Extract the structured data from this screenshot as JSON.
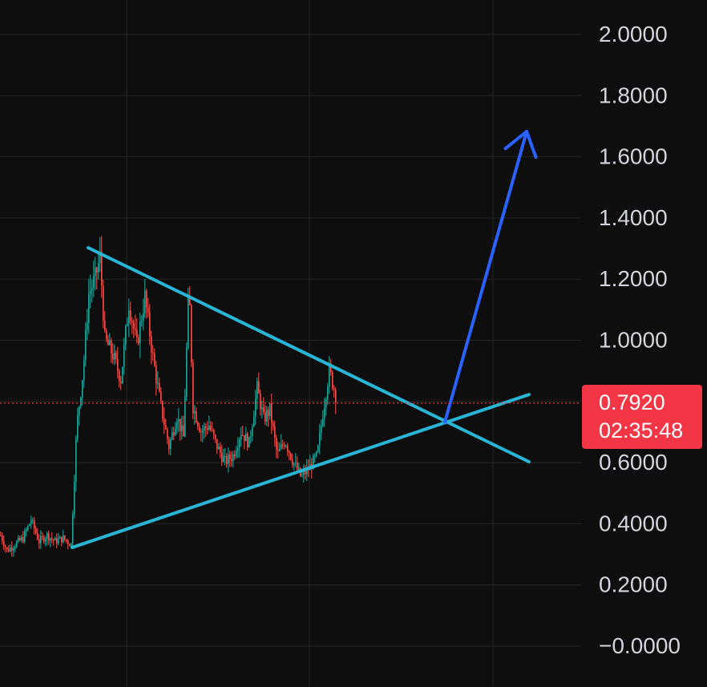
{
  "chart_data": {
    "type": "candlestick",
    "y_axis": {
      "range": [
        0,
        2.0
      ],
      "ticks": [
        2.0,
        1.8,
        1.6,
        1.4,
        1.2,
        1.0,
        0.6,
        0.4,
        0.2,
        0.0
      ],
      "tick_labels": [
        "2.0000",
        "1.8000",
        "1.6000",
        "1.4000",
        "1.2000",
        "1.0000",
        "0.6000",
        "0.4000",
        "0.2000",
        "−0.0000"
      ],
      "position": "right"
    },
    "grid": true,
    "current_price": {
      "value": 0.792,
      "label": "0.7920",
      "countdown": "02:35:48",
      "badge_color": "#f23645",
      "line_color": "#f23645"
    },
    "colors": {
      "background": "#0e0e0e",
      "grid": "#262626",
      "up_candle": "#26a69a",
      "down_candle": "#ef5350",
      "trendlines": "#29b6d6",
      "arrow": "#2962ff",
      "axis_text": "#d1d4dc"
    },
    "price_path": [
      [
        0,
        0.36
      ],
      [
        8,
        0.31
      ],
      [
        18,
        0.33
      ],
      [
        28,
        0.35
      ],
      [
        38,
        0.41
      ],
      [
        48,
        0.34
      ],
      [
        58,
        0.36
      ],
      [
        68,
        0.34
      ],
      [
        78,
        0.35
      ],
      [
        88,
        0.33
      ],
      [
        95,
        0.72
      ],
      [
        103,
        0.9
      ],
      [
        110,
        1.15
      ],
      [
        118,
        1.2
      ],
      [
        124,
        1.27
      ],
      [
        130,
        1.0
      ],
      [
        140,
        0.95
      ],
      [
        150,
        0.87
      ],
      [
        160,
        1.12
      ],
      [
        170,
        0.98
      ],
      [
        180,
        1.14
      ],
      [
        190,
        0.94
      ],
      [
        200,
        0.78
      ],
      [
        210,
        0.65
      ],
      [
        220,
        0.75
      ],
      [
        228,
        0.68
      ],
      [
        235,
        1.18
      ],
      [
        240,
        0.78
      ],
      [
        250,
        0.7
      ],
      [
        260,
        0.72
      ],
      [
        270,
        0.65
      ],
      [
        280,
        0.6
      ],
      [
        290,
        0.62
      ],
      [
        300,
        0.7
      ],
      [
        310,
        0.66
      ],
      [
        320,
        0.84
      ],
      [
        328,
        0.74
      ],
      [
        336,
        0.77
      ],
      [
        345,
        0.62
      ],
      [
        355,
        0.67
      ],
      [
        365,
        0.6
      ],
      [
        375,
        0.55
      ],
      [
        385,
        0.58
      ],
      [
        395,
        0.62
      ],
      [
        402,
        0.76
      ],
      [
        410,
        0.9
      ],
      [
        418,
        0.82
      ]
    ],
    "trendlines": [
      {
        "from": [
          110,
          1.3
        ],
        "to": [
          660,
          0.6
        ]
      },
      {
        "from": [
          90,
          0.32
        ],
        "to": [
          660,
          0.82
        ]
      }
    ],
    "arrow": {
      "from": [
        555,
        0.73
      ],
      "to": [
        657,
        1.68
      ]
    }
  }
}
